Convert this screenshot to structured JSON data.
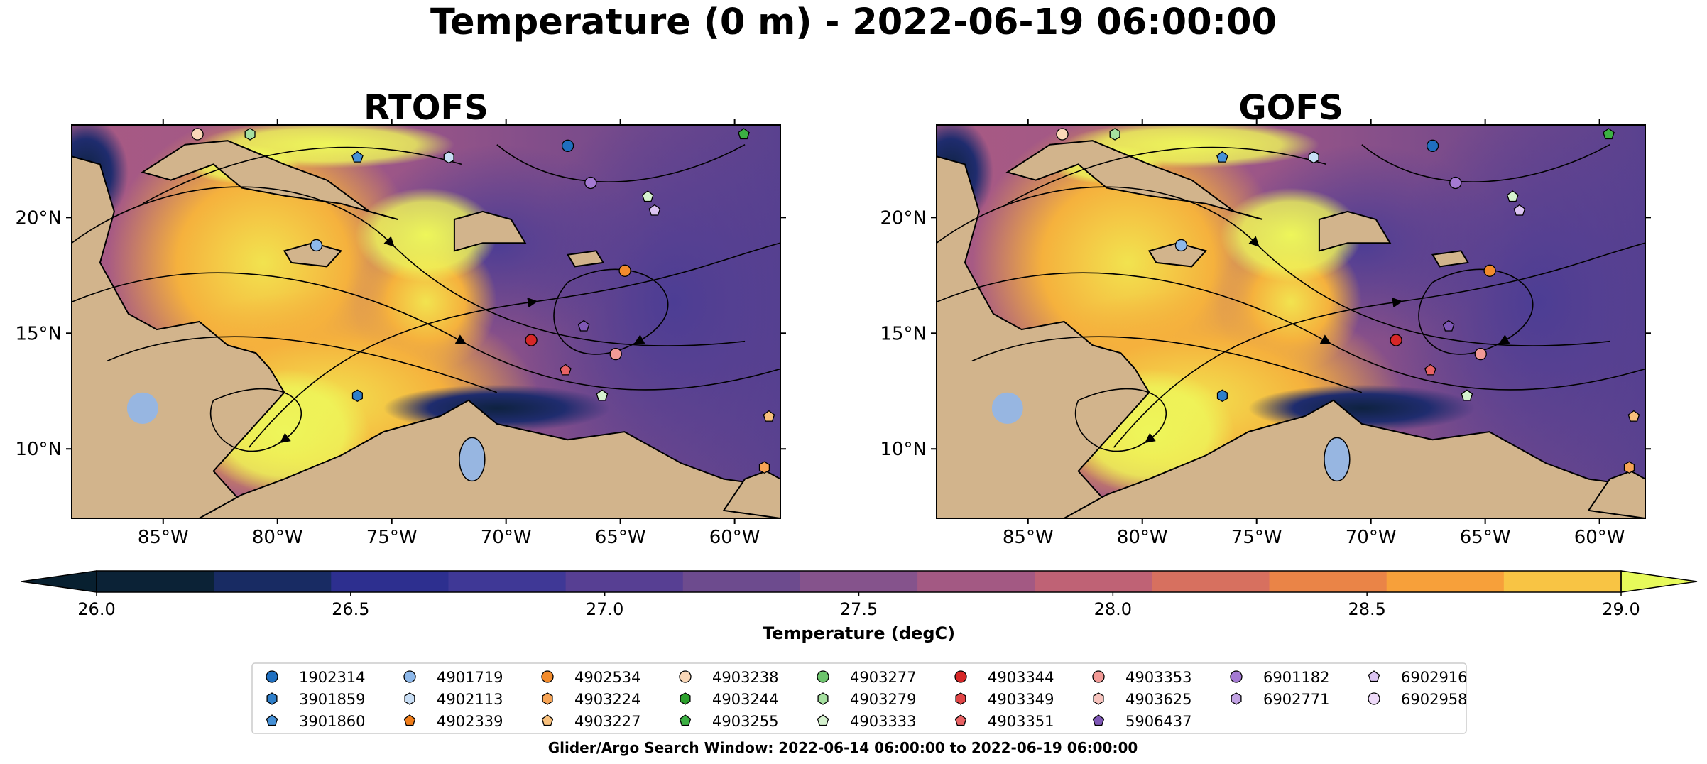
{
  "figure": {
    "title": "Temperature (0 m) - 2022-06-19 06:00:00",
    "footer": "Glider/Argo Search Window: 2022-06-14 06:00:00 to 2022-06-19 06:00:00"
  },
  "colors": {
    "land": "#d2b48c",
    "lakes": "#97b6e1",
    "background": "#ffffff"
  },
  "chart_data": [
    {
      "type": "heatmap",
      "title": "RTOFS",
      "lon_range": [
        -89,
        -58
      ],
      "lat_range": [
        7,
        24
      ],
      "x_ticks": [
        "85°W",
        "80°W",
        "75°W",
        "70°W",
        "65°W",
        "60°W"
      ],
      "y_ticks": [
        "10°N",
        "15°N",
        "20°N"
      ],
      "overlay": "surface current streamlines",
      "floats": [
        {
          "id": "4903238",
          "lon": -83.5,
          "lat": 23.6
        },
        {
          "id": "4903279",
          "lon": -81.2,
          "lat": 23.6
        },
        {
          "id": "4903255",
          "lon": -59.6,
          "lat": 23.6
        },
        {
          "id": "4901719",
          "lon": -78.3,
          "lat": 18.8
        },
        {
          "id": "3901860",
          "lon": -76.5,
          "lat": 22.6
        },
        {
          "id": "4902113",
          "lon": -72.5,
          "lat": 22.6
        },
        {
          "id": "1902314",
          "lon": -67.3,
          "lat": 23.1
        },
        {
          "id": "6901182",
          "lon": -66.3,
          "lat": 21.5
        },
        {
          "id": "4903333",
          "lon": -63.8,
          "lat": 20.9
        },
        {
          "id": "6902916",
          "lon": -63.5,
          "lat": 20.3
        },
        {
          "id": "4902534",
          "lon": -64.8,
          "lat": 17.7
        },
        {
          "id": "5906437",
          "lon": -66.6,
          "lat": 15.3
        },
        {
          "id": "4903344",
          "lon": -68.9,
          "lat": 14.7
        },
        {
          "id": "4903353",
          "lon": -65.2,
          "lat": 14.1
        },
        {
          "id": "4903351",
          "lon": -67.4,
          "lat": 13.4
        },
        {
          "id": "3901859",
          "lon": -76.5,
          "lat": 12.3
        },
        {
          "id": "4903333",
          "lon": -65.8,
          "lat": 12.3
        },
        {
          "id": "4903227",
          "lon": -58.5,
          "lat": 11.4
        },
        {
          "id": "4903224",
          "lon": -58.7,
          "lat": 9.2
        }
      ]
    },
    {
      "type": "heatmap",
      "title": "GOFS",
      "lon_range": [
        -89,
        -58
      ],
      "lat_range": [
        7,
        24
      ],
      "x_ticks": [
        "85°W",
        "80°W",
        "75°W",
        "70°W",
        "65°W",
        "60°W"
      ],
      "y_ticks": [
        "10°N",
        "15°N",
        "20°N"
      ],
      "overlay": "surface current streamlines",
      "floats": [
        {
          "id": "4903238",
          "lon": -83.5,
          "lat": 23.6
        },
        {
          "id": "4903279",
          "lon": -81.2,
          "lat": 23.6
        },
        {
          "id": "4903255",
          "lon": -59.6,
          "lat": 23.6
        },
        {
          "id": "4901719",
          "lon": -78.3,
          "lat": 18.8
        },
        {
          "id": "3901860",
          "lon": -76.5,
          "lat": 22.6
        },
        {
          "id": "4902113",
          "lon": -72.5,
          "lat": 22.6
        },
        {
          "id": "1902314",
          "lon": -67.3,
          "lat": 23.1
        },
        {
          "id": "6901182",
          "lon": -66.3,
          "lat": 21.5
        },
        {
          "id": "4903333",
          "lon": -63.8,
          "lat": 20.9
        },
        {
          "id": "6902916",
          "lon": -63.5,
          "lat": 20.3
        },
        {
          "id": "4902534",
          "lon": -64.8,
          "lat": 17.7
        },
        {
          "id": "5906437",
          "lon": -66.6,
          "lat": 15.3
        },
        {
          "id": "4903344",
          "lon": -68.9,
          "lat": 14.7
        },
        {
          "id": "4903353",
          "lon": -65.2,
          "lat": 14.1
        },
        {
          "id": "4903351",
          "lon": -67.4,
          "lat": 13.4
        },
        {
          "id": "3901859",
          "lon": -76.5,
          "lat": 12.3
        },
        {
          "id": "4903333",
          "lon": -65.8,
          "lat": 12.3
        },
        {
          "id": "4903227",
          "lon": -58.5,
          "lat": 11.4
        },
        {
          "id": "4903224",
          "lon": -58.7,
          "lat": 9.2
        }
      ]
    }
  ],
  "colorbar": {
    "label": "Temperature (degC)",
    "min": 26.0,
    "max": 29.0,
    "extend": "both",
    "ticks": [
      "26.0",
      "26.5",
      "27.0",
      "27.5",
      "28.0",
      "28.5",
      "29.0"
    ],
    "colors": [
      "#0b2236",
      "#182b63",
      "#2d2f8f",
      "#3f3896",
      "#573f93",
      "#6d4b8e",
      "#85538c",
      "#a35983",
      "#bf6275",
      "#d7705f",
      "#ea8447",
      "#f7a03a",
      "#f8c444"
    ],
    "under_color": "#082030",
    "over_color": "#e7fa5a"
  },
  "legend": {
    "columns": [
      [
        {
          "id": "1902314",
          "color": "#1f6fbf",
          "marker": "circle"
        },
        {
          "id": "3901859",
          "color": "#2f7fca",
          "marker": "hexagon"
        },
        {
          "id": "3901860",
          "color": "#4590d6",
          "marker": "pentagon"
        }
      ],
      [
        {
          "id": "4901719",
          "color": "#8db8ea",
          "marker": "circle"
        },
        {
          "id": "4902113",
          "color": "#c8def5",
          "marker": "hexagon"
        },
        {
          "id": "4902339",
          "color": "#f07d1a",
          "marker": "pentagon"
        }
      ],
      [
        {
          "id": "4902534",
          "color": "#f28b2c",
          "marker": "circle"
        },
        {
          "id": "4903224",
          "color": "#f7a455",
          "marker": "hexagon"
        },
        {
          "id": "4903227",
          "color": "#f8c07c",
          "marker": "pentagon"
        }
      ],
      [
        {
          "id": "4903238",
          "color": "#fad8b8",
          "marker": "circle"
        },
        {
          "id": "4903244",
          "color": "#2ca02c",
          "marker": "hexagon"
        },
        {
          "id": "4903255",
          "color": "#3cb043",
          "marker": "pentagon"
        }
      ],
      [
        {
          "id": "4903277",
          "color": "#6cc46c",
          "marker": "circle"
        },
        {
          "id": "4903279",
          "color": "#a6e0a0",
          "marker": "hexagon"
        },
        {
          "id": "4903333",
          "color": "#d6f2cf",
          "marker": "pentagon"
        }
      ],
      [
        {
          "id": "4903344",
          "color": "#d62728",
          "marker": "circle"
        },
        {
          "id": "4903349",
          "color": "#e04546",
          "marker": "hexagon"
        },
        {
          "id": "4903351",
          "color": "#e86264",
          "marker": "pentagon"
        }
      ],
      [
        {
          "id": "4903353",
          "color": "#f29a96",
          "marker": "circle"
        },
        {
          "id": "4903625",
          "color": "#f7c3bd",
          "marker": "hexagon"
        },
        {
          "id": "5906437",
          "color": "#7e57b5",
          "marker": "pentagon"
        }
      ],
      [
        {
          "id": "6901182",
          "color": "#a47ad2",
          "marker": "circle"
        },
        {
          "id": "6902771",
          "color": "#c1a2e3",
          "marker": "hexagon"
        }
      ],
      [
        {
          "id": "6902916",
          "color": "#dcc4f2",
          "marker": "pentagon"
        },
        {
          "id": "6902958",
          "color": "#eedaf9",
          "marker": "circle"
        }
      ]
    ]
  }
}
